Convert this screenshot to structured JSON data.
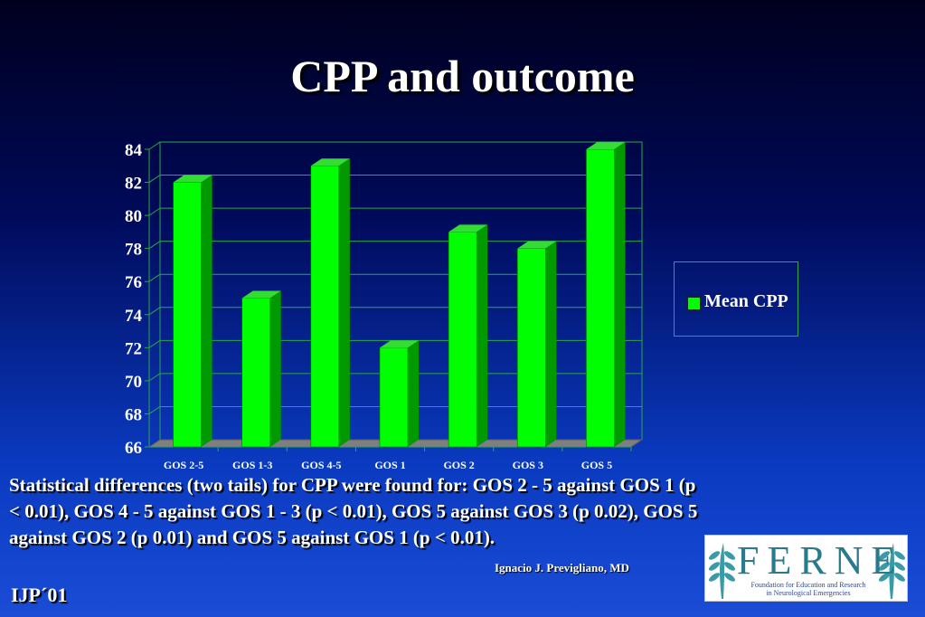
{
  "slide": {
    "title": "CPP and outcome",
    "caption_lines": [
      "Statistical differences (two tails) for CPP were found for: GOS 2 - 5 against GOS 1 (p",
      "< 0.01), GOS 4 - 5 against GOS 1 - 3 (p < 0.01), GOS 5 against GOS 3 (p 0.02), GOS 5",
      "against GOS 2 (p 0.01) and GOS 5 against GOS 1 (p < 0.01)."
    ],
    "author": "Ignacio J. Previgliano, MD",
    "footer": "IJP´01",
    "logo": {
      "word": "FERNE",
      "subtitle_lines": [
        "Foundation for Education and Research",
        "in Neurological Emergencies"
      ]
    }
  },
  "chart_data": {
    "type": "bar",
    "categories": [
      "GOS 2-5",
      "GOS 1-3",
      "GOS 4-5",
      "GOS 1",
      "GOS 2",
      "GOS 3",
      "GOS 5"
    ],
    "series": [
      {
        "name": "Mean CPP",
        "values": [
          82,
          75,
          83,
          72,
          79,
          78,
          84
        ]
      }
    ],
    "ylim": [
      66,
      84
    ],
    "yticks": [
      66,
      68,
      70,
      72,
      74,
      76,
      78,
      80,
      82,
      84
    ],
    "grid": true,
    "legend": "right",
    "colors": {
      "bar_face": "#00ff00",
      "bar_side": "#009900",
      "bar_top": "#33dd33",
      "grid": "#2aa84a",
      "floor": "#7f7f7f"
    }
  }
}
